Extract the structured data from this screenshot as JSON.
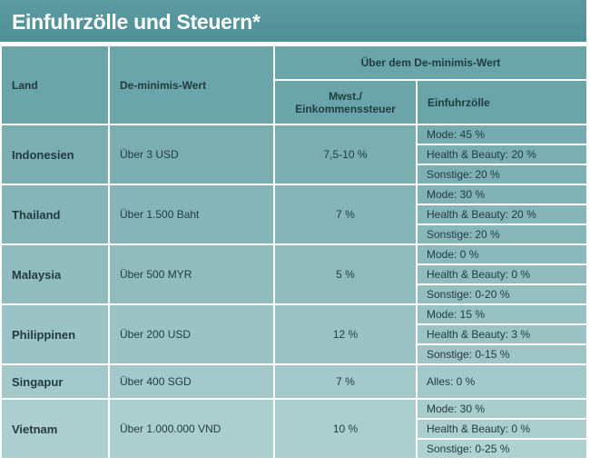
{
  "title": "Einfuhrzölle und Steuern*",
  "headers": {
    "land": "Land",
    "deminimis": "De-minimis-Wert",
    "above": "Über dem De-minimis-Wert",
    "tax_line1": "Mwst./",
    "tax_line2": "Einkommenssteuer",
    "duties": "Einfuhrzölle"
  },
  "rows": [
    {
      "land": "Indonesien",
      "value": "Über 3 USD",
      "tax": "7,5-10 %",
      "duties": [
        "Mode: 45 %",
        "Health & Beauty: 20 %",
        "Sonstige: 20 %"
      ]
    },
    {
      "land": "Thailand",
      "value": "Über 1.500 Baht",
      "tax": "7 %",
      "duties": [
        "Mode: 30 %",
        "Health & Beauty: 20 %",
        "Sonstige: 20 %"
      ]
    },
    {
      "land": "Malaysia",
      "value": "Über 500 MYR",
      "tax": "5 %",
      "duties": [
        "Mode: 0 %",
        "Health & Beauty: 0 %",
        "Sonstige: 0-20 %"
      ]
    },
    {
      "land": "Philippinen",
      "value": "Über 200 USD",
      "tax": "12 %",
      "duties": [
        "Mode: 15 %",
        "Health & Beauty: 3 %",
        "Sonstige: 0-15 %"
      ]
    },
    {
      "land": "Singapur",
      "value": "Über 400 SGD",
      "tax": "7 %",
      "duties": [
        "Alles: 0 %"
      ]
    },
    {
      "land": "Vietnam",
      "value": "Über 1.000.000 VND",
      "tax": "10 %",
      "duties": [
        "Mode: 30 %",
        "Health & Beauty: 0 %",
        "Sonstige: 0-25 %"
      ]
    }
  ],
  "colors": {
    "title_bg": "#5a9aa0",
    "header_bg": "#6aa5aa",
    "body_top": "#74aaae",
    "body_bottom": "#b4d3d3",
    "text": "#1f3b40"
  }
}
